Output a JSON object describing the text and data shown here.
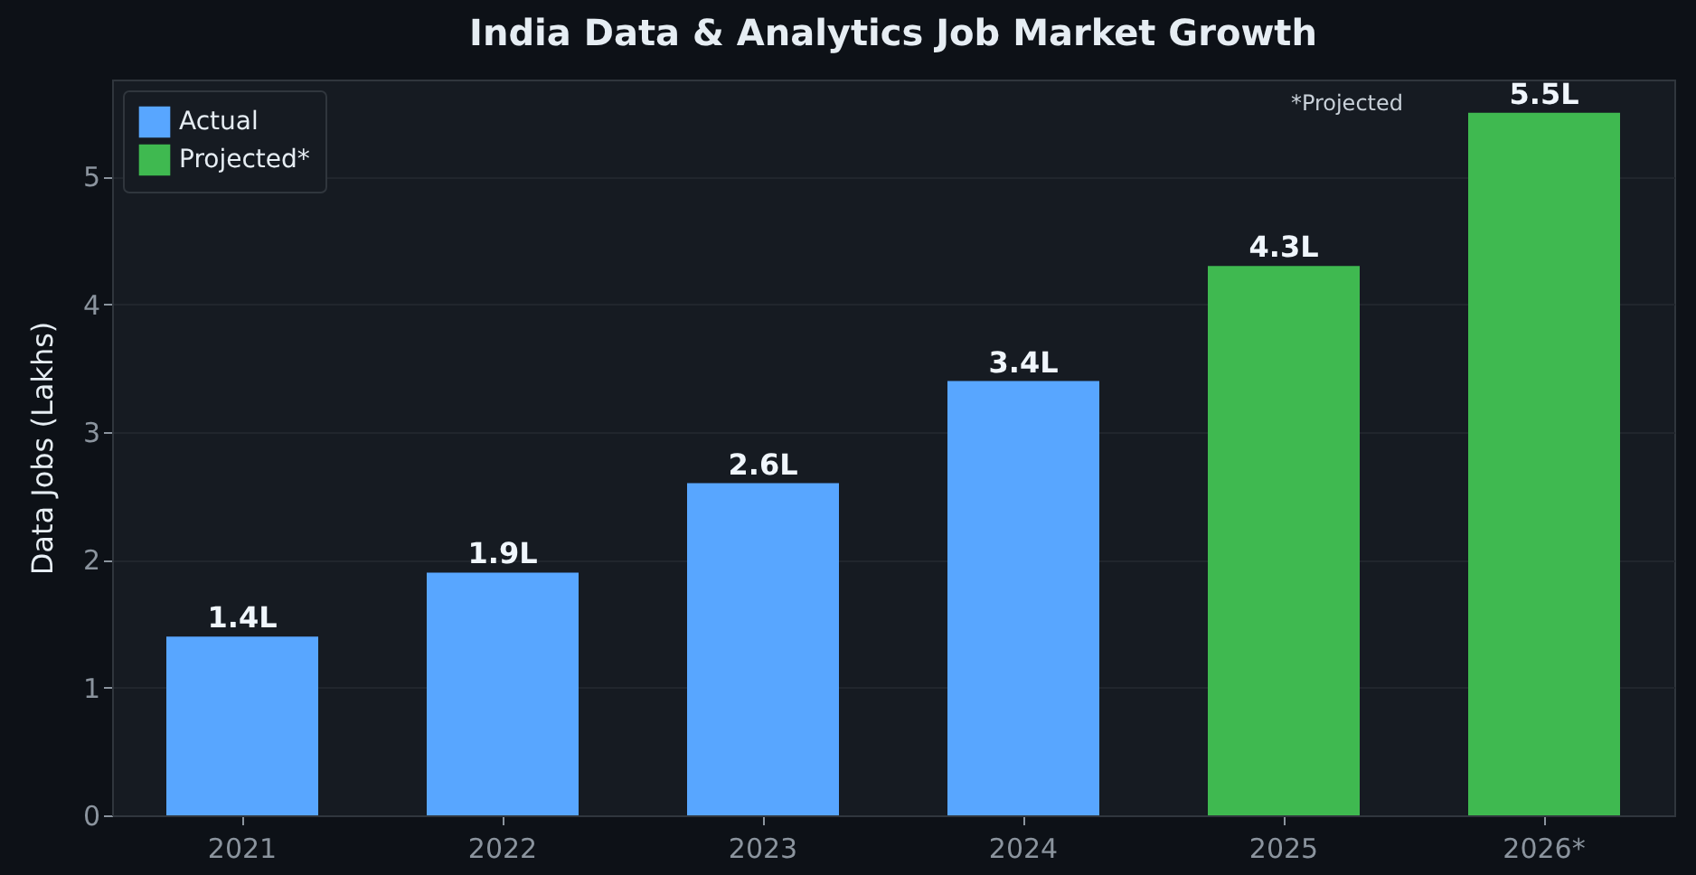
{
  "chart_data": {
    "type": "bar",
    "title": "India Data & Analytics Job Market Growth",
    "ylabel": "Data Jobs (Lakhs)",
    "categories": [
      "2021",
      "2022",
      "2023",
      "2024",
      "2025",
      "2026*"
    ],
    "series": [
      {
        "name": "Actual",
        "color": "#58a6ff",
        "values": [
          1.4,
          1.9,
          2.6,
          3.4,
          null,
          null
        ],
        "value_labels": [
          "1.4L",
          "1.9L",
          "2.6L",
          "3.4L",
          null,
          null
        ]
      },
      {
        "name": "Projected*",
        "color": "#3fb950",
        "values": [
          null,
          null,
          null,
          null,
          4.3,
          5.5
        ],
        "value_labels": [
          null,
          null,
          null,
          null,
          "4.3L",
          "5.5L"
        ]
      }
    ],
    "ylim": [
      0,
      5.76
    ],
    "yticks": [
      0,
      1,
      2,
      3,
      4,
      5
    ],
    "grid": "y",
    "legend": "top left",
    "annotations": [
      "*Projected"
    ]
  }
}
